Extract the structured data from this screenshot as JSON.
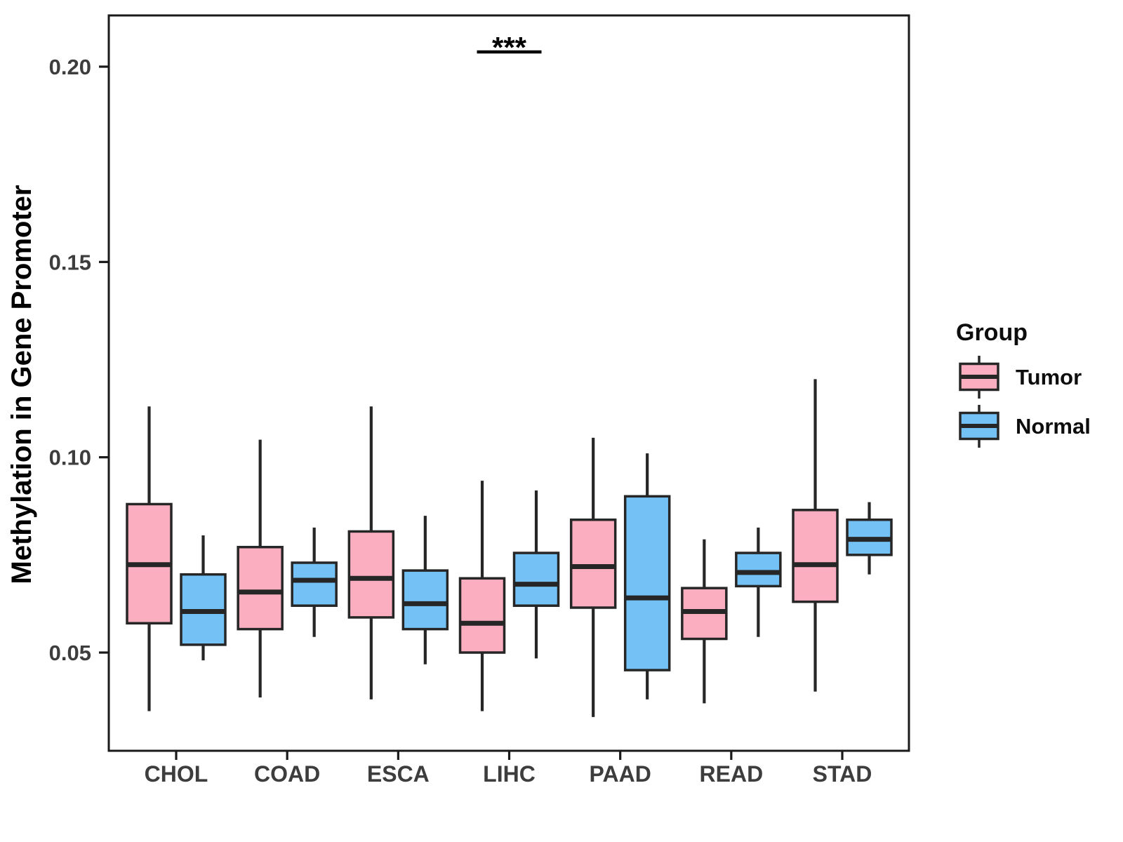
{
  "chart_data": {
    "type": "boxplot",
    "title": "",
    "xlabel": "",
    "ylabel": "Methylation in Gene Promoter",
    "grid": false,
    "categories": [
      "CHOL",
      "COAD",
      "ESCA",
      "LIHC",
      "PAAD",
      "READ",
      "STAD"
    ],
    "y_axis": {
      "ylim": [
        0.025,
        0.213
      ],
      "ticks": [
        {
          "value": 0.05,
          "label": "0.05"
        },
        {
          "value": 0.1,
          "label": "0.10"
        },
        {
          "value": 0.15,
          "label": "0.15"
        },
        {
          "value": 0.2,
          "label": "0.20"
        }
      ]
    },
    "series": [
      {
        "name": "Tumor",
        "color": "#FAAEC0",
        "boxes": [
          {
            "category": "CHOL",
            "low": 0.035,
            "q1": 0.0575,
            "median": 0.0725,
            "q3": 0.088,
            "high": 0.113
          },
          {
            "category": "COAD",
            "low": 0.0385,
            "q1": 0.056,
            "median": 0.0655,
            "q3": 0.077,
            "high": 0.1045
          },
          {
            "category": "ESCA",
            "low": 0.038,
            "q1": 0.059,
            "median": 0.069,
            "q3": 0.081,
            "high": 0.113
          },
          {
            "category": "LIHC",
            "low": 0.035,
            "q1": 0.05,
            "median": 0.0575,
            "q3": 0.069,
            "high": 0.094
          },
          {
            "category": "PAAD",
            "low": 0.0335,
            "q1": 0.0615,
            "median": 0.072,
            "q3": 0.084,
            "high": 0.105
          },
          {
            "category": "READ",
            "low": 0.037,
            "q1": 0.0535,
            "median": 0.0605,
            "q3": 0.0665,
            "high": 0.079
          },
          {
            "category": "STAD",
            "low": 0.04,
            "q1": 0.063,
            "median": 0.0725,
            "q3": 0.0865,
            "high": 0.12
          }
        ]
      },
      {
        "name": "Normal",
        "color": "#74C1F6",
        "boxes": [
          {
            "category": "CHOL",
            "low": 0.048,
            "q1": 0.052,
            "median": 0.0605,
            "q3": 0.07,
            "high": 0.08
          },
          {
            "category": "COAD",
            "low": 0.054,
            "q1": 0.062,
            "median": 0.0685,
            "q3": 0.073,
            "high": 0.082
          },
          {
            "category": "ESCA",
            "low": 0.047,
            "q1": 0.056,
            "median": 0.0625,
            "q3": 0.071,
            "high": 0.085
          },
          {
            "category": "LIHC",
            "low": 0.0485,
            "q1": 0.062,
            "median": 0.0675,
            "q3": 0.0755,
            "high": 0.0915
          },
          {
            "category": "PAAD",
            "low": 0.038,
            "q1": 0.0455,
            "median": 0.064,
            "q3": 0.09,
            "high": 0.101
          },
          {
            "category": "READ",
            "low": 0.054,
            "q1": 0.067,
            "median": 0.0705,
            "q3": 0.0755,
            "high": 0.082
          },
          {
            "category": "STAD",
            "low": 0.07,
            "q1": 0.075,
            "median": 0.079,
            "q3": 0.084,
            "high": 0.0885
          }
        ]
      }
    ],
    "annotations": [
      {
        "type": "significance",
        "label": "***",
        "category": "LIHC",
        "y": 0.204
      }
    ],
    "legend": {
      "title": "Group",
      "position": "right",
      "entries": [
        {
          "label": "Tumor",
          "color": "#FAAEC0"
        },
        {
          "label": "Normal",
          "color": "#74C1F6"
        }
      ]
    }
  },
  "colors": {
    "box_stroke": "#262626",
    "axis_line": "#1a1a1a",
    "axis_text": "#3d3d3d",
    "title_text": "#000000",
    "legend_text": "#0d0d0d",
    "background": "#ffffff"
  }
}
